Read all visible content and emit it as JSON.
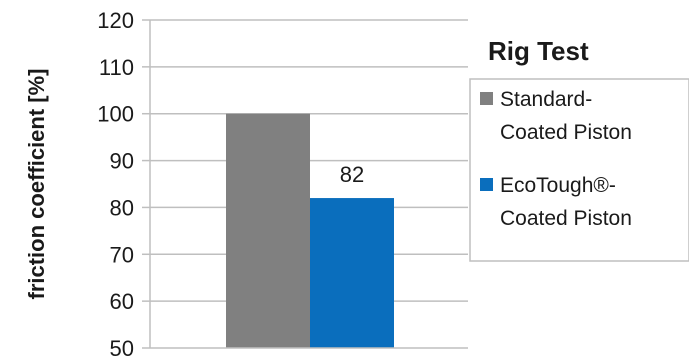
{
  "chart_data": {
    "type": "bar",
    "title": "Rig Test",
    "ylabel": "friction coefficient  [%]",
    "xlabel": "",
    "ylim": [
      50,
      120
    ],
    "yticks": [
      50,
      60,
      70,
      80,
      90,
      100,
      110,
      120
    ],
    "grid": true,
    "legend_position": "right",
    "series": [
      {
        "name": "Standard-Coated Piston",
        "name_lines": [
          "Standard-",
          "Coated Piston"
        ],
        "value": 100,
        "color": "#808080",
        "data_label": ""
      },
      {
        "name": "EcoTough®-Coated Piston",
        "name_lines": [
          "EcoTough®-",
          "Coated Piston"
        ],
        "value": 82,
        "color": "#0a6ebd",
        "data_label": "82"
      }
    ]
  }
}
